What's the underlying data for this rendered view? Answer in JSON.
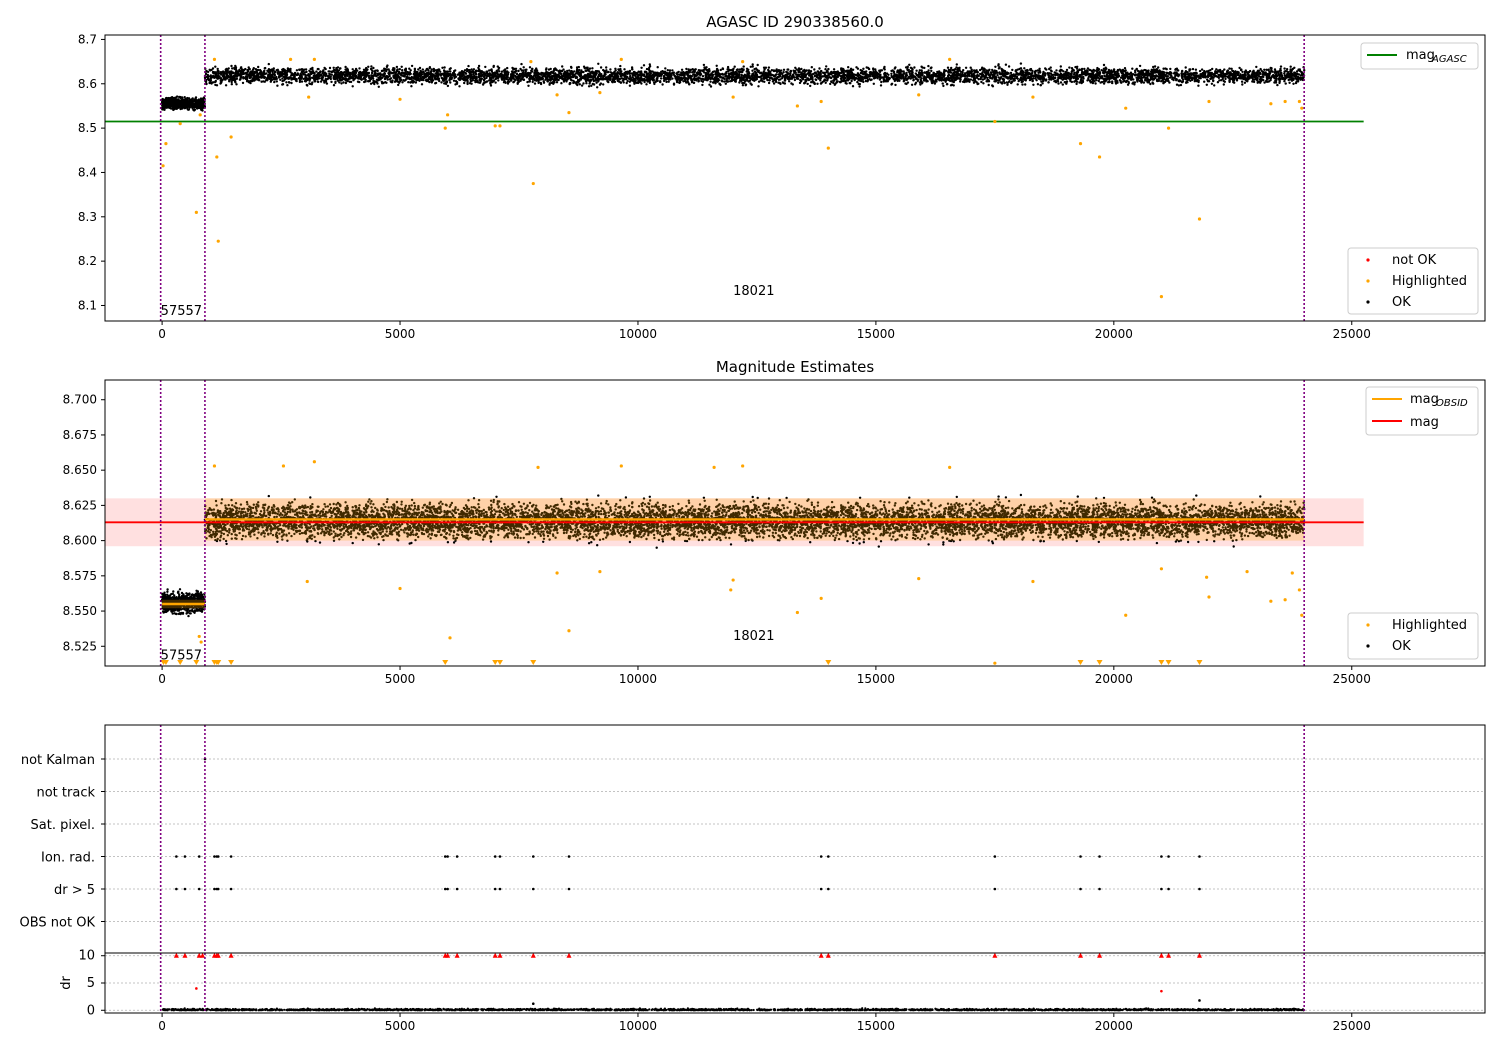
{
  "chart_data": [
    {
      "type": "scatter",
      "title": "AGASC ID 290338560.0",
      "xlim": [
        -1200,
        27800
      ],
      "ylim": [
        8.065,
        8.71
      ],
      "xticks": [
        0,
        5000,
        10000,
        15000,
        20000,
        25000
      ],
      "xtick_labels": [
        "0",
        "5000",
        "10000",
        "15000",
        "20000",
        "25000"
      ],
      "yticks": [
        8.1,
        8.2,
        8.3,
        8.4,
        8.5,
        8.6,
        8.7
      ],
      "ytick_labels": [
        "8.1",
        "8.2",
        "8.3",
        "8.4",
        "8.5",
        "8.6",
        "8.7"
      ],
      "reference_line": {
        "name": "mag",
        "subscript": "AGASC",
        "y": 8.515,
        "x_range": [
          -1200,
          25250
        ],
        "color": "#008000"
      },
      "obsid_boundaries": [
        -30,
        900,
        24000
      ],
      "obsid_labels": [
        {
          "text": "57557",
          "x": -30,
          "y": 8.09
        },
        {
          "text": "18021",
          "x": 12000,
          "y": 8.135
        }
      ],
      "bands": [
        {
          "name": "57557",
          "x_range": [
            0,
            900
          ],
          "center": 8.555,
          "spread": 0.012
        },
        {
          "name": "18021",
          "x_range": [
            900,
            24000
          ],
          "center": 8.618,
          "spread": 0.018
        }
      ],
      "highlighted_points": [
        {
          "x": 20,
          "y": 8.415
        },
        {
          "x": 80,
          "y": 8.465
        },
        {
          "x": 380,
          "y": 8.51
        },
        {
          "x": 720,
          "y": 8.31
        },
        {
          "x": 800,
          "y": 8.53
        },
        {
          "x": 1150,
          "y": 8.435
        },
        {
          "x": 1180,
          "y": 8.245
        },
        {
          "x": 1450,
          "y": 8.48
        },
        {
          "x": 3080,
          "y": 8.57
        },
        {
          "x": 5000,
          "y": 8.565
        },
        {
          "x": 5950,
          "y": 8.5
        },
        {
          "x": 6000,
          "y": 8.53
        },
        {
          "x": 7000,
          "y": 8.505
        },
        {
          "x": 7100,
          "y": 8.505
        },
        {
          "x": 7800,
          "y": 8.375
        },
        {
          "x": 8300,
          "y": 8.575
        },
        {
          "x": 8550,
          "y": 8.535
        },
        {
          "x": 9200,
          "y": 8.58
        },
        {
          "x": 12000,
          "y": 8.57
        },
        {
          "x": 13350,
          "y": 8.55
        },
        {
          "x": 13850,
          "y": 8.56
        },
        {
          "x": 14000,
          "y": 8.455
        },
        {
          "x": 15900,
          "y": 8.575
        },
        {
          "x": 17500,
          "y": 8.515
        },
        {
          "x": 18300,
          "y": 8.57
        },
        {
          "x": 19300,
          "y": 8.465
        },
        {
          "x": 19700,
          "y": 8.435
        },
        {
          "x": 20250,
          "y": 8.545
        },
        {
          "x": 21000,
          "y": 8.12
        },
        {
          "x": 21150,
          "y": 8.5
        },
        {
          "x": 21800,
          "y": 8.295
        },
        {
          "x": 22000,
          "y": 8.56
        },
        {
          "x": 23300,
          "y": 8.555
        },
        {
          "x": 23600,
          "y": 8.56
        },
        {
          "x": 23900,
          "y": 8.56
        },
        {
          "x": 23950,
          "y": 8.545
        },
        {
          "x": 1100,
          "y": 8.655
        },
        {
          "x": 2700,
          "y": 8.655
        },
        {
          "x": 3200,
          "y": 8.655
        },
        {
          "x": 7750,
          "y": 8.65
        },
        {
          "x": 9650,
          "y": 8.655
        },
        {
          "x": 12200,
          "y": 8.65
        },
        {
          "x": 16550,
          "y": 8.655
        }
      ],
      "legend_lines": [
        {
          "label": "mag",
          "subscript": "AGASC",
          "color": "#008000"
        }
      ],
      "legend_points": [
        {
          "label": "not OK",
          "color": "#ff0000"
        },
        {
          "label": "Highlighted",
          "color": "#ffa500"
        },
        {
          "label": "OK",
          "color": "#000000"
        }
      ]
    },
    {
      "type": "scatter",
      "title": "Magnitude Estimates",
      "xlim": [
        -1200,
        27800
      ],
      "ylim": [
        8.511,
        8.714
      ],
      "xticks": [
        0,
        5000,
        10000,
        15000,
        20000,
        25000
      ],
      "xtick_labels": [
        "0",
        "5000",
        "10000",
        "15000",
        "20000",
        "25000"
      ],
      "yticks": [
        8.525,
        8.55,
        8.575,
        8.6,
        8.625,
        8.65,
        8.675,
        8.7
      ],
      "ytick_labels": [
        "8.525",
        "8.550",
        "8.575",
        "8.600",
        "8.625",
        "8.650",
        "8.675",
        "8.700"
      ],
      "mag_line": {
        "name": "mag",
        "y": 8.613,
        "x_range": [
          -1200,
          25250
        ],
        "color": "#ff0000",
        "band": [
          8.596,
          8.63
        ]
      },
      "obsid_mags": [
        {
          "x_range": [
            0,
            900
          ],
          "y": 8.555,
          "band": [
            8.552,
            8.558
          ]
        },
        {
          "x_range": [
            900,
            24000
          ],
          "y": 8.615,
          "band": [
            8.6,
            8.63
          ]
        }
      ],
      "obsid_boundaries": [
        -30,
        900,
        24000
      ],
      "obsid_labels": [
        {
          "text": "57557",
          "x": -30,
          "y": 8.519
        },
        {
          "text": "18021",
          "x": 12000,
          "y": 8.533
        }
      ],
      "bands": [
        {
          "name": "57557",
          "x_range": [
            0,
            900
          ],
          "center": 8.556,
          "spread": 0.007
        },
        {
          "name": "18021",
          "x_range": [
            900,
            24000
          ],
          "center": 8.614,
          "spread": 0.012
        }
      ],
      "highlighted_points": [
        {
          "x": 780,
          "y": 8.532
        },
        {
          "x": 820,
          "y": 8.528
        },
        {
          "x": 1100,
          "y": 8.653
        },
        {
          "x": 2550,
          "y": 8.653
        },
        {
          "x": 3050,
          "y": 8.571
        },
        {
          "x": 3200,
          "y": 8.656
        },
        {
          "x": 5000,
          "y": 8.566
        },
        {
          "x": 6050,
          "y": 8.531
        },
        {
          "x": 7900,
          "y": 8.652
        },
        {
          "x": 8300,
          "y": 8.577
        },
        {
          "x": 8550,
          "y": 8.536
        },
        {
          "x": 9200,
          "y": 8.578
        },
        {
          "x": 9650,
          "y": 8.653
        },
        {
          "x": 11600,
          "y": 8.652
        },
        {
          "x": 12000,
          "y": 8.572
        },
        {
          "x": 11950,
          "y": 8.565
        },
        {
          "x": 12200,
          "y": 8.653
        },
        {
          "x": 13350,
          "y": 8.549
        },
        {
          "x": 13850,
          "y": 8.559
        },
        {
          "x": 15900,
          "y": 8.573
        },
        {
          "x": 16550,
          "y": 8.652
        },
        {
          "x": 17500,
          "y": 8.513
        },
        {
          "x": 18300,
          "y": 8.571
        },
        {
          "x": 20250,
          "y": 8.547
        },
        {
          "x": 21000,
          "y": 8.58
        },
        {
          "x": 22000,
          "y": 8.56
        },
        {
          "x": 21950,
          "y": 8.574
        },
        {
          "x": 22800,
          "y": 8.578
        },
        {
          "x": 23300,
          "y": 8.557
        },
        {
          "x": 23600,
          "y": 8.558
        },
        {
          "x": 23750,
          "y": 8.577
        },
        {
          "x": 23900,
          "y": 8.565
        },
        {
          "x": 23950,
          "y": 8.547
        }
      ],
      "clipped_points_x": [
        30,
        80,
        380,
        720,
        1100,
        1150,
        1180,
        1450,
        5950,
        7000,
        7100,
        7800,
        14000,
        19300,
        19700,
        21000,
        21150,
        21800
      ],
      "legend_lines": [
        {
          "label": "mag",
          "subscript": "OBSID",
          "color": "#ffa500"
        },
        {
          "label": "mag",
          "subscript": "",
          "color": "#ff0000"
        }
      ],
      "legend_points": [
        {
          "label": "Highlighted",
          "color": "#ffa500"
        },
        {
          "label": "OK",
          "color": "#000000"
        }
      ]
    },
    {
      "type": "scatter",
      "xlim": [
        -1200,
        27800
      ],
      "xticks": [
        0,
        5000,
        10000,
        15000,
        20000,
        25000
      ],
      "xtick_labels": [
        "0",
        "5000",
        "10000",
        "15000",
        "20000",
        "25000"
      ],
      "flag_labels": [
        "not Kalman",
        "not track",
        "Sat. pixel.",
        "Ion. rad.",
        "dr > 5",
        "OBS not OK"
      ],
      "flag_points": {
        "not Kalman": [
          900
        ],
        "not track": [],
        "Sat. pixel.": [],
        "Ion. rad.": [
          300,
          480,
          780,
          1100,
          1150,
          1180,
          1450,
          5950,
          6000,
          6200,
          7000,
          7100,
          7800,
          8550,
          13850,
          14000,
          17500,
          19300,
          19700,
          21000,
          21150,
          21800
        ],
        "dr > 5": [
          300,
          480,
          780,
          1100,
          1150,
          1180,
          1450,
          5950,
          6000,
          6200,
          7000,
          7100,
          7800,
          8550,
          13850,
          14000,
          17500,
          19300,
          19700,
          21000,
          21150,
          21800
        ],
        "OBS not OK": []
      },
      "ylabel": "dr",
      "dr_ylim": [
        -0.5,
        10.5
      ],
      "dr_yticks": [
        0,
        5,
        10
      ],
      "dr_ytick_labels": [
        "0",
        "5",
        "10"
      ],
      "dr_points": [
        {
          "x": 720,
          "y": 4.0
        },
        {
          "x": 7800,
          "y": 1.2
        },
        {
          "x": 21000,
          "y": 3.5
        },
        {
          "x": 21800,
          "y": 1.8
        }
      ],
      "dr_clipped_x": [
        300,
        480,
        780,
        850,
        1100,
        1150,
        1180,
        1450,
        5950,
        6000,
        6200,
        7000,
        7100,
        7800,
        8550,
        13850,
        14000,
        17500,
        19300,
        19700,
        21000,
        21150,
        21800
      ],
      "obsid_boundaries": [
        -30,
        900,
        24000
      ]
    }
  ]
}
